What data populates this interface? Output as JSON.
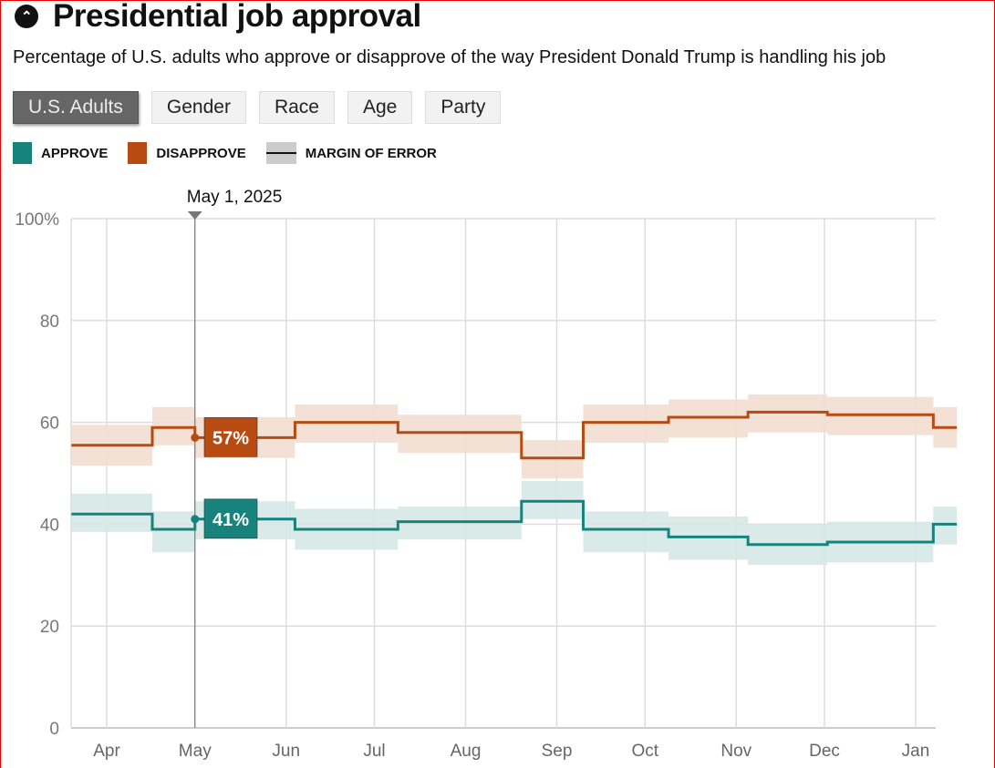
{
  "header": {
    "title": "Presidential job approval",
    "collapse_icon": "chevron-up-icon",
    "subtitle": "Percentage of U.S. adults who approve or disapprove of the way President Donald Trump is handling his job"
  },
  "filters": [
    {
      "label": "U.S. Adults",
      "active": true
    },
    {
      "label": "Gender"
    },
    {
      "label": "Race"
    },
    {
      "label": "Age"
    },
    {
      "label": "Party"
    }
  ],
  "legend": {
    "approve": "APPROVE",
    "disapprove": "DISAPPROVE",
    "moe": "MARGIN OF ERROR"
  },
  "colors": {
    "approve": "#18837d",
    "disapprove": "#b84b12",
    "approve_band": "#d5e8e7",
    "disapprove_band": "#f2ded2"
  },
  "chart_data": {
    "type": "line",
    "title": "Presidential job approval",
    "x_unit": "days since Apr 1, 2025",
    "xlim": [
      -12,
      289
    ],
    "ylim": [
      0,
      100
    ],
    "yticks": [
      {
        "v": 100,
        "label": "100%"
      },
      {
        "v": 80,
        "label": "80"
      },
      {
        "v": 60,
        "label": "60"
      },
      {
        "v": 40,
        "label": "40"
      },
      {
        "v": 20,
        "label": "20"
      },
      {
        "v": 0,
        "label": "0"
      }
    ],
    "xticks": [
      {
        "d": 0,
        "label": "Apr"
      },
      {
        "d": 30,
        "label": "May"
      },
      {
        "d": 61,
        "label": "Jun"
      },
      {
        "d": 91,
        "label": "Jul"
      },
      {
        "d": 122,
        "label": "Aug"
      },
      {
        "d": 153,
        "label": "Sep"
      },
      {
        "d": 183,
        "label": "Oct"
      },
      {
        "d": 214,
        "label": "Nov"
      },
      {
        "d": 244,
        "label": "Dec"
      },
      {
        "d": 275,
        "label": "Jan"
      }
    ],
    "grid": true,
    "breaks": [
      -12,
      15.5,
      30,
      64,
      99,
      141,
      162,
      191,
      218,
      245,
      281,
      289
    ],
    "series": [
      {
        "name": "APPROVE",
        "values": [
          42,
          39,
          41,
          39,
          40.5,
          44.5,
          39,
          37.5,
          36,
          36.5,
          40
        ],
        "lo": [
          38.5,
          34.5,
          37,
          35,
          37,
          41,
          34.5,
          33,
          32,
          32.5,
          36
        ],
        "hi": [
          46,
          42.5,
          44.5,
          43,
          43.5,
          48.5,
          42.5,
          41.5,
          40,
          40.5,
          43.5
        ]
      },
      {
        "name": "DISAPPROVE",
        "values": [
          55.5,
          59,
          57,
          60,
          58,
          53,
          60,
          61,
          62,
          61.5,
          59
        ],
        "lo": [
          51.5,
          55.5,
          53,
          56,
          54,
          49,
          56,
          57,
          58,
          57.5,
          55
        ],
        "hi": [
          59.5,
          63,
          61,
          63.5,
          61.5,
          56.5,
          63.5,
          64.5,
          65.5,
          65,
          63
        ]
      }
    ],
    "tooltip": {
      "date": "May 1, 2025",
      "d": 30,
      "approve": "41%",
      "disapprove": "57%",
      "approve_value": 41,
      "disapprove_value": 57
    }
  }
}
